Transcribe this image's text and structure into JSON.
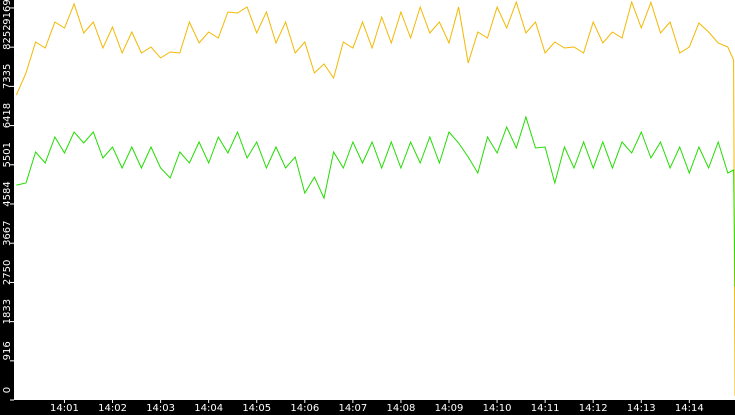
{
  "chart_data": {
    "type": "line",
    "x": [
      0,
      0.2,
      0.4,
      0.6,
      0.8,
      1,
      1.2,
      1.4,
      1.6,
      1.8,
      2,
      2.2,
      2.4,
      2.6,
      2.8,
      3,
      3.2,
      3.4,
      3.6,
      3.8,
      4,
      4.2,
      4.4,
      4.6,
      4.8,
      5,
      5.2,
      5.4,
      5.6,
      5.8,
      6,
      6.2,
      6.4,
      6.6,
      6.8,
      7,
      7.2,
      7.4,
      7.6,
      7.8,
      8,
      8.2,
      8.4,
      8.6,
      8.8,
      9,
      9.2,
      9.4,
      9.6,
      9.8,
      10,
      10.2,
      10.4,
      10.6,
      10.8,
      11,
      11.2,
      11.4,
      11.6,
      11.8,
      12,
      12.2,
      12.4,
      12.6,
      12.8,
      13,
      13.2,
      13.4,
      13.6,
      13.8,
      14,
      14.2,
      14.4,
      14.6,
      14.8,
      14.92,
      14.95
    ],
    "series": [
      {
        "color": "#f2b800",
        "values": [
          7133,
          7648,
          8373,
          8233,
          8841,
          8701,
          9262,
          8584,
          8841,
          8233,
          8724,
          8116,
          8607,
          8116,
          8256,
          8000,
          8139,
          8116,
          8841,
          8350,
          8607,
          8467,
          9075,
          9052,
          9192,
          8584,
          9075,
          8350,
          8841,
          8116,
          8373,
          7648,
          7858,
          7531,
          8373,
          8233,
          8841,
          8233,
          8958,
          8350,
          9075,
          8467,
          9192,
          8584,
          8841,
          8350,
          9192,
          7882,
          8607,
          8467,
          9192,
          8701,
          9309,
          8584,
          8841,
          8116,
          8373,
          8233,
          8256,
          8116,
          8841,
          8350,
          8607,
          8467,
          9309,
          8701,
          9300,
          8584,
          8841,
          8116,
          8256,
          8818,
          8607,
          8350,
          8256,
          7952,
          100
        ]
      },
      {
        "color": "#22dd00",
        "values": [
          5027,
          5074,
          5799,
          5542,
          6150,
          5776,
          6267,
          6010,
          6267,
          5659,
          5916,
          5425,
          5916,
          5425,
          5916,
          5425,
          5191,
          5799,
          5542,
          6033,
          5542,
          6150,
          5776,
          6267,
          5659,
          6033,
          5425,
          5916,
          5425,
          5682,
          4840,
          5214,
          4723,
          5799,
          5425,
          6033,
          5542,
          6033,
          5425,
          6033,
          5425,
          6033,
          5542,
          6150,
          5542,
          6267,
          6010,
          5682,
          5308,
          6150,
          5776,
          6384,
          5893,
          6618,
          5893,
          5916,
          5074,
          5916,
          5425,
          6033,
          5425,
          6033,
          5425,
          6033,
          5776,
          6267,
          5659,
          6033,
          5425,
          5916,
          5308,
          5916,
          5425,
          6033,
          5308,
          5378,
          2643
        ]
      }
    ],
    "xlim": [
      -0.05,
      14.95
    ],
    "xticks": [
      {
        "value": 1,
        "label": "14:01"
      },
      {
        "value": 2,
        "label": "14:02"
      },
      {
        "value": 3,
        "label": "14:03"
      },
      {
        "value": 4,
        "label": "14:04"
      },
      {
        "value": 5,
        "label": "14:05"
      },
      {
        "value": 6,
        "label": "14:06"
      },
      {
        "value": 7,
        "label": "14:07"
      },
      {
        "value": 8,
        "label": "14:08"
      },
      {
        "value": 9,
        "label": "14:09"
      },
      {
        "value": 10,
        "label": "14:10"
      },
      {
        "value": 11,
        "label": "14:11"
      },
      {
        "value": 12,
        "label": "14:12"
      },
      {
        "value": 13,
        "label": "14:13"
      },
      {
        "value": 14,
        "label": "14:14"
      }
    ],
    "ylim": [
      0,
      9355
    ],
    "yticks": [
      0,
      916,
      1833,
      2750,
      3667,
      4584,
      5501,
      6418,
      7335,
      8252,
      9169
    ]
  }
}
